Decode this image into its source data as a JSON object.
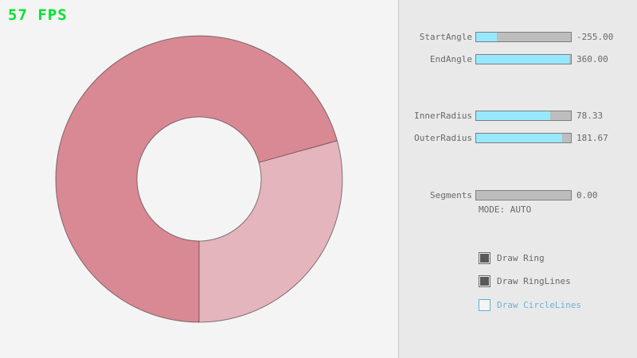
{
  "app": {
    "fps_label": "57 FPS"
  },
  "ring": {
    "start_angle": "-255.00",
    "end_angle": "360.00",
    "inner_radius": "78.33",
    "outer_radius": "181.67",
    "segments": "0.00"
  },
  "panel": {
    "sliders": [
      {
        "label": "StartAngle",
        "value": "-255.00",
        "fill_pct": 21.7
      },
      {
        "label": "EndAngle",
        "value": "360.00",
        "fill_pct": 98
      },
      {
        "label": "InnerRadius",
        "value": "78.33",
        "fill_pct": 78.3
      },
      {
        "label": "OuterRadius",
        "value": "181.67",
        "fill_pct": 90.8
      },
      {
        "label": "Segments",
        "value": "0.00",
        "fill_pct": 0
      }
    ],
    "mode_label": "MODE: AUTO",
    "checkboxes": [
      {
        "label": "Draw Ring",
        "checked": true
      },
      {
        "label": "Draw RingLines",
        "checked": true
      },
      {
        "label": "Draw CircleLines",
        "checked": false
      }
    ]
  },
  "colors": {
    "fps_green": "#00e430",
    "slider_fill_cyan": "#97e8ff",
    "ring_dark": "#d98994",
    "ring_light": "#e4b5bc",
    "ring_outline": "rgba(0,0,0,0.45)",
    "focus_blue": "#5bb2d9"
  }
}
